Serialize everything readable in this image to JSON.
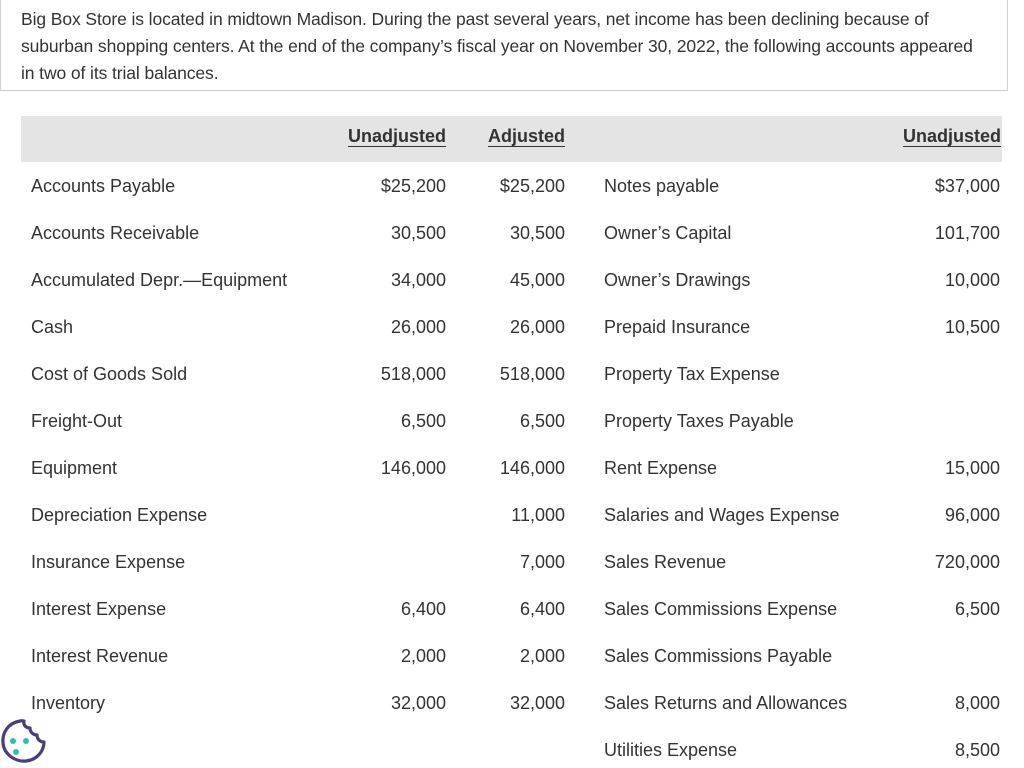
{
  "intro": "Big Box Store is located in midtown Madison. During the past several years, net income has been declining because of suburban shopping centers. At the end of the company’s fiscal year on November 30, 2022, the following accounts appeared in two of its trial balances.",
  "headers": {
    "left_unadjusted": "Unadjusted",
    "left_adjusted": "Adjusted",
    "right_unadjusted": "Unadjusted"
  },
  "rows": [
    {
      "name": "Accounts Payable",
      "unadj": "$25,200",
      "adj": "$25,200",
      "rname": "Notes payable",
      "rval": "$37,000"
    },
    {
      "name": "Accounts Receivable",
      "unadj": "30,500",
      "adj": "30,500",
      "rname": "Owner’s Capital",
      "rval": "101,700"
    },
    {
      "name": "Accumulated Depr.—Equipment",
      "unadj": "34,000",
      "adj": "45,000",
      "rname": "Owner’s Drawings",
      "rval": "10,000"
    },
    {
      "name": "Cash",
      "unadj": "26,000",
      "adj": "26,000",
      "rname": "Prepaid Insurance",
      "rval": "10,500"
    },
    {
      "name": "Cost of Goods Sold",
      "unadj": "518,000",
      "adj": "518,000",
      "rname": "Property Tax Expense",
      "rval": ""
    },
    {
      "name": "Freight-Out",
      "unadj": "6,500",
      "adj": "6,500",
      "rname": "Property Taxes Payable",
      "rval": ""
    },
    {
      "name": "Equipment",
      "unadj": "146,000",
      "adj": "146,000",
      "rname": "Rent Expense",
      "rval": "15,000"
    },
    {
      "name": "Depreciation Expense",
      "unadj": "",
      "adj": "11,000",
      "rname": "Salaries and Wages Expense",
      "rval": "96,000"
    },
    {
      "name": "Insurance Expense",
      "unadj": "",
      "adj": "7,000",
      "rname": "Sales Revenue",
      "rval": "720,000"
    },
    {
      "name": "Interest Expense",
      "unadj": "6,400",
      "adj": "6,400",
      "rname": "Sales Commissions Expense",
      "rval": "6,500"
    },
    {
      "name": "Interest Revenue",
      "unadj": "2,000",
      "adj": "2,000",
      "rname": "Sales Commissions Payable",
      "rval": ""
    },
    {
      "name": "Inventory",
      "unadj": "32,000",
      "adj": "32,000",
      "rname": "Sales Returns and Allowances",
      "rval": "8,000"
    },
    {
      "name": "",
      "unadj": "",
      "adj": "",
      "rname": "Utilities Expense",
      "rval": "8,500"
    }
  ],
  "icons": {
    "cookie": "cookie-icon"
  },
  "colors": {
    "header_bg": "#e4e4e4",
    "text": "#333333",
    "cookie_stroke": "#4a3d7a",
    "cookie_dots": "#2fc1a8"
  }
}
